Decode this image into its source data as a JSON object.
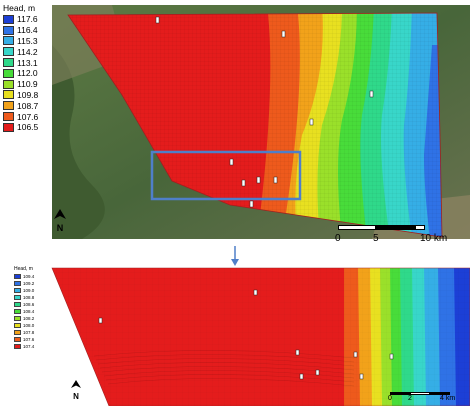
{
  "top_legend": {
    "title": "Head, m",
    "items": [
      {
        "label": "117.6",
        "color": "#1c3fd6"
      },
      {
        "label": "116.4",
        "color": "#2f72e6"
      },
      {
        "label": "115.3",
        "color": "#35aee6"
      },
      {
        "label": "114.2",
        "color": "#38d6c9"
      },
      {
        "label": "113.1",
        "color": "#2fd98a"
      },
      {
        "label": "112.0",
        "color": "#48dc3a"
      },
      {
        "label": "110.9",
        "color": "#9ae02a"
      },
      {
        "label": "109.8",
        "color": "#e8e020"
      },
      {
        "label": "108.7",
        "color": "#f2a21a"
      },
      {
        "label": "107.6",
        "color": "#ee5a1c"
      },
      {
        "label": "106.5",
        "color": "#e41c1c"
      }
    ]
  },
  "top_scale": {
    "ticks": [
      "0",
      "5",
      "10 km"
    ]
  },
  "top_north": "N",
  "bottom_legend": {
    "title": "Head, m",
    "items": [
      {
        "label": "109.4",
        "color": "#1c3fd6"
      },
      {
        "label": "109.2",
        "color": "#2f72e6"
      },
      {
        "label": "109.0",
        "color": "#35aee6"
      },
      {
        "label": "108.8",
        "color": "#38d6c9"
      },
      {
        "label": "108.6",
        "color": "#2fd98a"
      },
      {
        "label": "108.4",
        "color": "#48dc3a"
      },
      {
        "label": "108.2",
        "color": "#9ae02a"
      },
      {
        "label": "108.0",
        "color": "#e8e020"
      },
      {
        "label": "107.8",
        "color": "#f2a21a"
      },
      {
        "label": "107.6",
        "color": "#ee5a1c"
      },
      {
        "label": "107.4",
        "color": "#e41c1c"
      }
    ]
  },
  "bottom_scale": {
    "ticks": [
      "0",
      "2",
      "4 km"
    ]
  },
  "bottom_north": "N",
  "colors": {
    "grid_red": "#e52520",
    "highlight_box": "#4f7fc9",
    "satellite_green": "#4f6b3a",
    "satellite_brown": "#8a7a55"
  }
}
